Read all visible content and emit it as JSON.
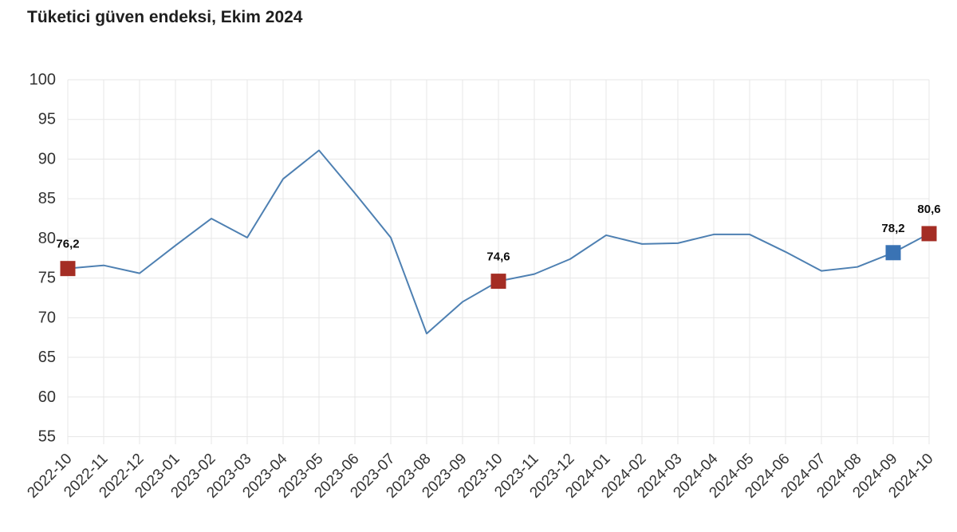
{
  "title": "Tüketici güven endeksi, Ekim 2024",
  "chart_data": {
    "type": "line",
    "title": "Tüketici güven endeksi, Ekim 2024",
    "x": [
      "2022-10",
      "2022-11",
      "2022-12",
      "2023-01",
      "2023-02",
      "2023-03",
      "2023-04",
      "2023-05",
      "2023-06",
      "2023-07",
      "2023-08",
      "2023-09",
      "2023-10",
      "2023-11",
      "2023-12",
      "2024-01",
      "2024-02",
      "2024-03",
      "2024-04",
      "2024-05",
      "2024-06",
      "2024-07",
      "2024-08",
      "2024-09",
      "2024-10"
    ],
    "series": [
      {
        "name": "Tüketici güven endeksi",
        "values": [
          76.2,
          76.6,
          75.6,
          79.1,
          82.5,
          80.1,
          87.5,
          91.1,
          85.7,
          80.1,
          68.0,
          72.0,
          74.6,
          75.5,
          77.4,
          80.4,
          79.3,
          79.4,
          80.5,
          80.5,
          78.3,
          75.9,
          76.4,
          78.2,
          80.6
        ]
      }
    ],
    "ylim": [
      55,
      100
    ],
    "ytick_step": 5,
    "yticks": [
      55,
      60,
      65,
      70,
      75,
      80,
      85,
      90,
      95,
      100
    ],
    "grid": true,
    "legend_position": "none",
    "xlabel": "",
    "ylabel": "",
    "decimal_separator": ",",
    "colors": {
      "line": "#4e80b2",
      "grid": "#e7e7e7",
      "tick_text": "#333333",
      "point_label_text": "#0d0d0d",
      "highlight_red": "#a42d24",
      "highlight_blue": "#3a73b4"
    },
    "annotated_points": [
      {
        "x": "2022-10",
        "value": 76.2,
        "label": "76,2",
        "marker_color": "#a42d24"
      },
      {
        "x": "2023-10",
        "value": 74.6,
        "label": "74,6",
        "marker_color": "#a42d24"
      },
      {
        "x": "2024-09",
        "value": 78.2,
        "label": "78,2",
        "marker_color": "#3a73b4"
      },
      {
        "x": "2024-10",
        "value": 80.6,
        "label": "80,6",
        "marker_color": "#a42d24"
      }
    ]
  }
}
